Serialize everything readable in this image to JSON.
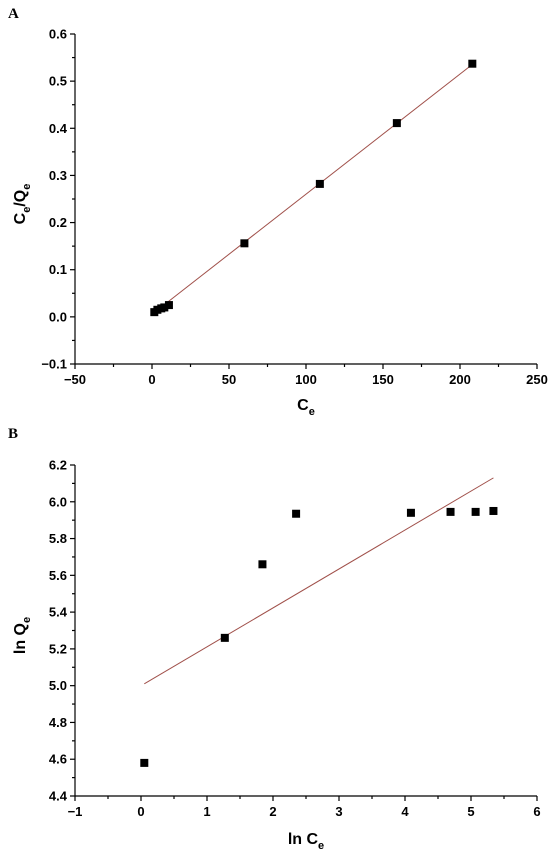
{
  "chart_data": [
    {
      "panel_label": "A",
      "type": "scatter",
      "xlabel": {
        "main": "C",
        "sub": "e"
      },
      "ylabel": {
        "parts": [
          {
            "t": "C",
            "sub": false
          },
          {
            "t": "e",
            "sub": true
          },
          {
            "t": "/Q",
            "sub": false
          },
          {
            "t": "e",
            "sub": true
          }
        ]
      },
      "xlim": [
        -50,
        250
      ],
      "ylim": [
        -0.1,
        0.6
      ],
      "xticks": [
        -50,
        0,
        50,
        100,
        150,
        200,
        250
      ],
      "xtick_labels": [
        "−50",
        "0",
        "50",
        "100",
        "150",
        "200",
        "250"
      ],
      "yticks": [
        -0.1,
        0.0,
        0.1,
        0.2,
        0.3,
        0.4,
        0.5,
        0.6
      ],
      "ytick_labels": [
        "−0.1",
        "0.0",
        "0.1",
        "0.2",
        "0.3",
        "0.4",
        "0.5",
        "0.6"
      ],
      "series": [
        {
          "x": [
            1.5,
            3.5,
            6,
            8,
            11,
            60,
            109,
            159,
            208
          ],
          "y": [
            0.01,
            0.015,
            0.018,
            0.02,
            0.025,
            0.156,
            0.282,
            0.411,
            0.537
          ]
        }
      ],
      "fit_line": {
        "x": [
          1,
          209
        ],
        "y": [
          0.008,
          0.538
        ]
      },
      "grid": false,
      "colors": {
        "points": "#000000",
        "fit": "#a0504a"
      }
    },
    {
      "panel_label": "B",
      "type": "scatter",
      "xlabel": {
        "main": "ln C",
        "sub": "e"
      },
      "ylabel": {
        "parts": [
          {
            "t": "ln Q",
            "sub": false
          },
          {
            "t": "e",
            "sub": true
          }
        ]
      },
      "xlim": [
        -1,
        6
      ],
      "ylim": [
        4.4,
        6.2
      ],
      "xticks": [
        -1,
        0,
        1,
        2,
        3,
        4,
        5,
        6
      ],
      "xtick_labels": [
        "−1",
        "0",
        "1",
        "2",
        "3",
        "4",
        "5",
        "6"
      ],
      "yticks": [
        4.4,
        4.6,
        4.8,
        5.0,
        5.2,
        5.4,
        5.6,
        5.8,
        6.0,
        6.2
      ],
      "ytick_labels": [
        "4.4",
        "4.6",
        "4.8",
        "5.0",
        "5.2",
        "5.4",
        "5.6",
        "5.8",
        "6.0",
        "6.2"
      ],
      "series": [
        {
          "x": [
            0.05,
            1.27,
            1.84,
            2.35,
            4.09,
            4.69,
            5.07,
            5.34
          ],
          "y": [
            4.58,
            5.26,
            5.66,
            5.935,
            5.94,
            5.945,
            5.945,
            5.95
          ]
        }
      ],
      "fit_line": {
        "x": [
          0.05,
          5.34
        ],
        "y": [
          5.01,
          6.13
        ]
      },
      "grid": false,
      "colors": {
        "points": "#000000",
        "fit": "#a0504a"
      }
    }
  ]
}
